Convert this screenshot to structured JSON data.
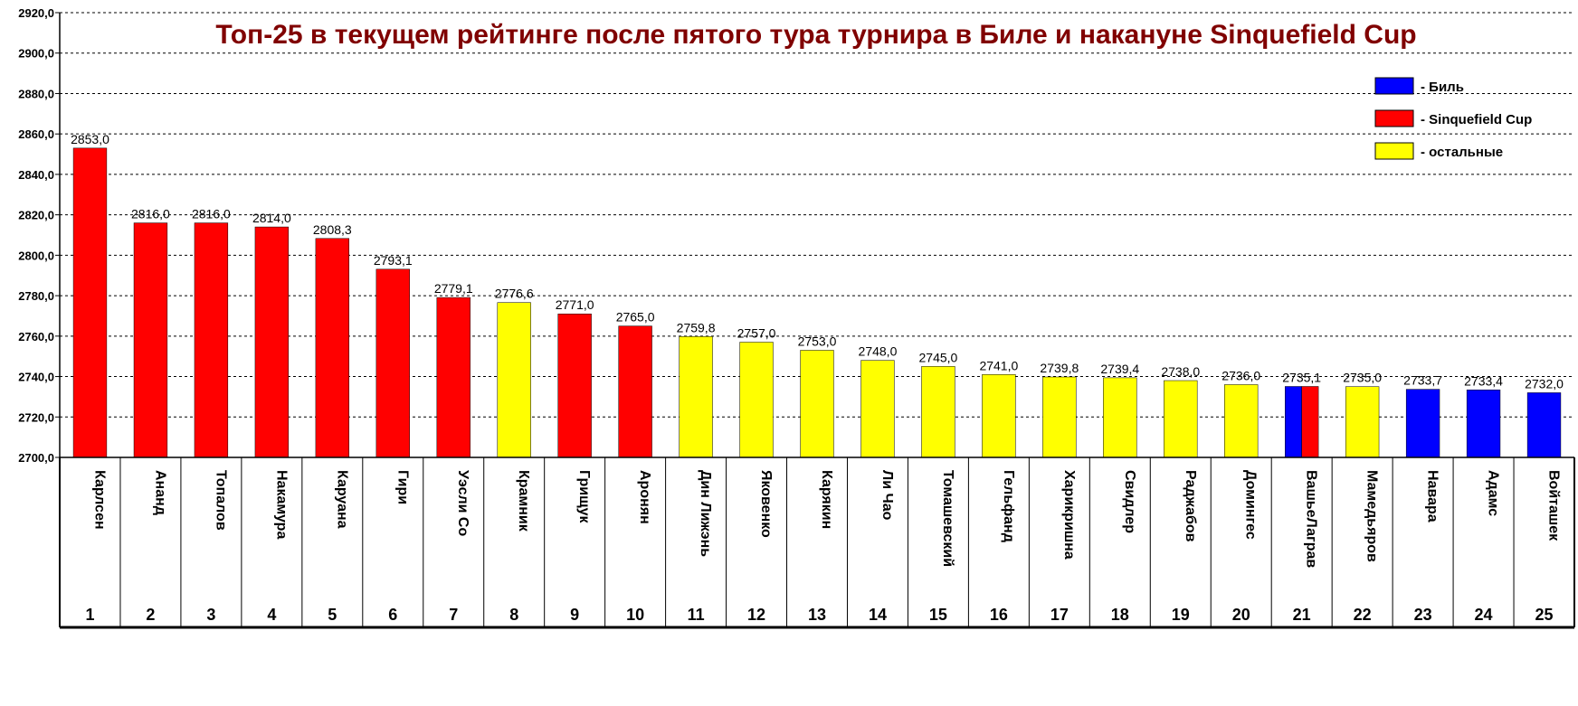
{
  "chart_data": {
    "type": "bar",
    "title": "Топ-25 в текущем рейтинге после пятого тура турнира в Биле и накануне Sinquefield Cup",
    "ylim": [
      2700,
      2920
    ],
    "yticks": [
      "2700,0",
      "2720,0",
      "2740,0",
      "2760,0",
      "2780,0",
      "2800,0",
      "2820,0",
      "2840,0",
      "2860,0",
      "2880,0",
      "2900,0",
      "2920,0"
    ],
    "grid": true,
    "legend_position": "top-right",
    "legend": [
      {
        "label": "- Биль",
        "color": "#0000ff"
      },
      {
        "label": "- Sinquefield Cup",
        "color": "#ff0000"
      },
      {
        "label": "- остальные",
        "color": "#ffff00"
      }
    ],
    "categories": [
      "Карлсен",
      "Ананд",
      "Топалов",
      "Накамура",
      "Каруана",
      "Гири",
      "Уэсли Со",
      "Крамник",
      "Грищук",
      "Аронян",
      "Дин Лижэнь",
      "Яковенко",
      "Карякин",
      "Ли Чао",
      "Томашевский",
      "Гельфанд",
      "Харикришна",
      "Свидлер",
      "Раджабов",
      "Домингес",
      "ВашьеЛаграв",
      "Мамедьяров",
      "Навара",
      "Адамс",
      "Войташек"
    ],
    "ranks": [
      "1",
      "2",
      "3",
      "4",
      "5",
      "6",
      "7",
      "8",
      "9",
      "10",
      "11",
      "12",
      "13",
      "14",
      "15",
      "16",
      "17",
      "18",
      "19",
      "20",
      "21",
      "22",
      "23",
      "24",
      "25"
    ],
    "values": [
      2853.0,
      2816.0,
      2816.0,
      2814.0,
      2808.3,
      2793.1,
      2779.1,
      2776.6,
      2771.0,
      2765.0,
      2759.8,
      2757.0,
      2753.0,
      2748.0,
      2745.0,
      2741.0,
      2739.8,
      2739.4,
      2738.0,
      2736.0,
      2735.1,
      2735.0,
      2733.7,
      2733.4,
      2732.0
    ],
    "value_labels": [
      "2853,0",
      "2816,0",
      "2816,0",
      "2814,0",
      "2808,3",
      "2793,1",
      "2779,1",
      "2776,6",
      "2771,0",
      "2765,0",
      "2759,8",
      "2757,0",
      "2753,0",
      "2748,0",
      "2745,0",
      "2741,0",
      "2739,8",
      "2739,4",
      "2738,0",
      "2736,0",
      "2735,1",
      "2735,0",
      "2733,7",
      "2733,4",
      "2732,0"
    ],
    "groups": [
      "Sinquefield Cup",
      "Sinquefield Cup",
      "Sinquefield Cup",
      "Sinquefield Cup",
      "Sinquefield Cup",
      "Sinquefield Cup",
      "Sinquefield Cup",
      "остальные",
      "Sinquefield Cup",
      "Sinquefield Cup",
      "остальные",
      "остальные",
      "остальные",
      "остальные",
      "остальные",
      "остальные",
      "остальные",
      "остальные",
      "остальные",
      "остальные",
      "Биль+Sinquefield Cup",
      "остальные",
      "Биль",
      "Биль",
      "Биль"
    ],
    "colors": {
      "Биль": "#0000ff",
      "Sinquefield Cup": "#ff0000",
      "остальные": "#ffff00"
    }
  }
}
